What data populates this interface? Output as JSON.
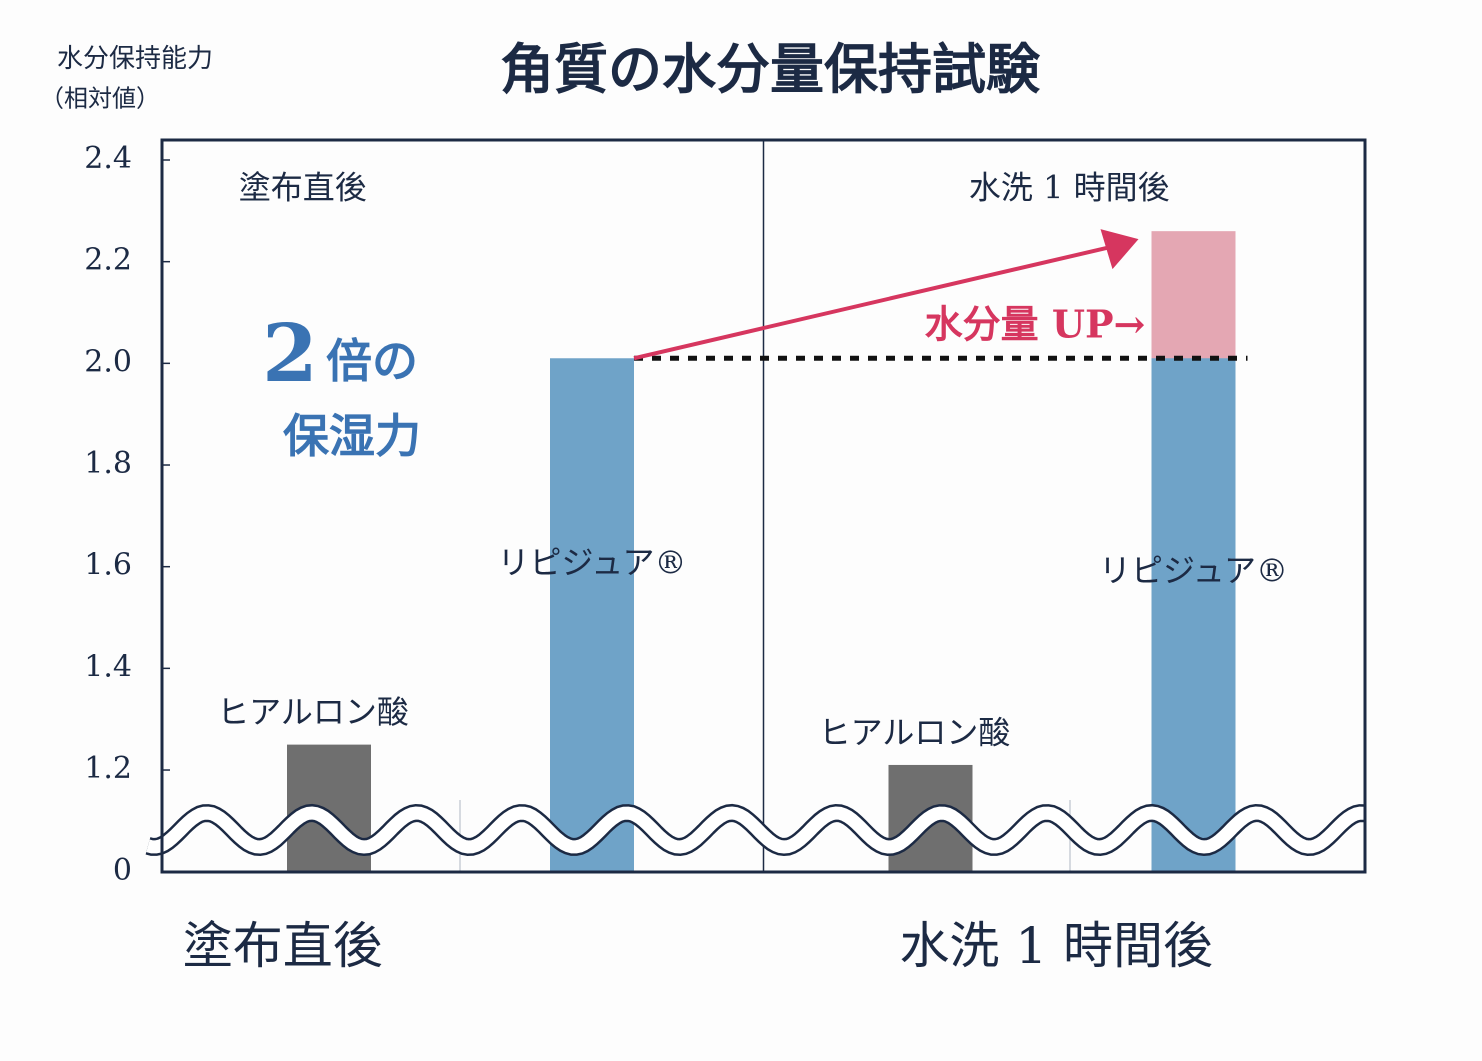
{
  "chart_data": {
    "type": "bar",
    "title": "角質の水分量保持試験",
    "ylabel": [
      "水分保持能力",
      "（相対値）"
    ],
    "categories": [
      "塗布直後",
      "水洗 1 時間後"
    ],
    "series": [
      {
        "name": "ヒアルロン酸",
        "color": "#6f6f6f",
        "values": [
          1.25,
          1.21
        ]
      },
      {
        "name": "リピジュア®",
        "color": "#6fa3c8",
        "increase_color": "#e4a7b3",
        "values": [
          2.01,
          2.26
        ]
      }
    ],
    "ylim": [
      0,
      2.4
    ],
    "axis_break": {
      "from": 0,
      "to": 1.0
    },
    "yticks": [
      0,
      1.2,
      1.4,
      1.6,
      1.8,
      {
        "value": 2,
        "label": "2.0"
      },
      2.2,
      2.4
    ],
    "annotations": [
      "2",
      "倍の",
      "保湿力",
      "水分量 UP→"
    ],
    "accent_color": "#d6365f",
    "highlight_color": "#3a73b3"
  }
}
